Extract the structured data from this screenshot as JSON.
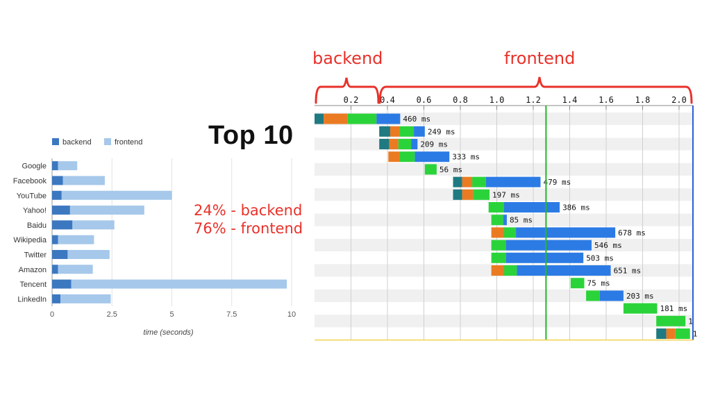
{
  "slide": {
    "title": "Top 10",
    "stat_backend": "24% - backend",
    "stat_frontend": "76% - frontend"
  },
  "brackets": {
    "backend_label": "backend",
    "frontend_label": "frontend"
  },
  "chart_data": [
    {
      "type": "bar",
      "orientation": "horizontal",
      "stacked": true,
      "categories": [
        "Google",
        "Facebook",
        "YouTube",
        "Yahoo!",
        "Baidu",
        "Wikipedia",
        "Twitter",
        "Amazon",
        "Tencent",
        "LinkedIn"
      ],
      "series": [
        {
          "name": "backend",
          "color": "#3c78c0",
          "values": [
            0.25,
            0.45,
            0.4,
            0.75,
            0.85,
            0.25,
            0.65,
            0.25,
            0.8,
            0.35
          ]
        },
        {
          "name": "frontend",
          "color": "#a6c8ea",
          "values": [
            0.8,
            1.75,
            4.6,
            3.1,
            1.75,
            1.5,
            1.75,
            1.45,
            9.0,
            2.1
          ]
        }
      ],
      "xlabel": "time (seconds)",
      "ylabel": "",
      "xlim": [
        0,
        10
      ],
      "xticks": [
        "0",
        "2.5",
        "5",
        "7.5",
        "10"
      ],
      "grid": true,
      "legend": "top-left"
    },
    {
      "type": "waterfall",
      "xlim": [
        0,
        2.1
      ],
      "xticks": [
        "0.2",
        "0.4",
        "0.6",
        "0.8",
        "1.0",
        "1.2",
        "1.4",
        "1.6",
        "1.8",
        "2.0"
      ],
      "marker_line": 1.27,
      "phase_colors": {
        "dns": "#1f7a82",
        "connect": "#ea7b22",
        "wait": "#2bd33a",
        "receive": "#2c7be5"
      },
      "rows": [
        {
          "label": "460 ms",
          "start": 0.0,
          "segments": [
            [
              "dns",
              0.05
            ],
            [
              "connect",
              0.13
            ],
            [
              "wait",
              0.16
            ],
            [
              "receive",
              0.13
            ]
          ]
        },
        {
          "label": "249 ms",
          "start": 0.355,
          "segments": [
            [
              "dns",
              0.06
            ],
            [
              "connect",
              0.05
            ],
            [
              "wait",
              0.08
            ],
            [
              "receive",
              0.06
            ]
          ]
        },
        {
          "label": "209 ms",
          "start": 0.355,
          "segments": [
            [
              "dns",
              0.055
            ],
            [
              "connect",
              0.05
            ],
            [
              "wait",
              0.07
            ],
            [
              "receive",
              0.035
            ]
          ]
        },
        {
          "label": "333 ms",
          "start": 0.405,
          "segments": [
            [
              "connect",
              0.06
            ],
            [
              "wait",
              0.085
            ],
            [
              "receive",
              0.19
            ]
          ]
        },
        {
          "label": "56 ms",
          "start": 0.605,
          "segments": [
            [
              "wait",
              0.065
            ]
          ]
        },
        {
          "label": "479 ms",
          "start": 0.76,
          "segments": [
            [
              "dns",
              0.05
            ],
            [
              "connect",
              0.055
            ],
            [
              "wait",
              0.075
            ],
            [
              "receive",
              0.3
            ]
          ]
        },
        {
          "label": "197 ms",
          "start": 0.76,
          "segments": [
            [
              "dns",
              0.05
            ],
            [
              "connect",
              0.06
            ],
            [
              "wait",
              0.09
            ]
          ]
        },
        {
          "label": "386 ms",
          "start": 0.955,
          "segments": [
            [
              "wait",
              0.085
            ],
            [
              "receive",
              0.305
            ]
          ]
        },
        {
          "label": "85 ms",
          "start": 0.97,
          "segments": [
            [
              "wait",
              0.065
            ],
            [
              "receive",
              0.02
            ]
          ]
        },
        {
          "label": "678 ms",
          "start": 0.97,
          "segments": [
            [
              "connect",
              0.07
            ],
            [
              "wait",
              0.065
            ],
            [
              "receive",
              0.545
            ]
          ]
        },
        {
          "label": "546 ms",
          "start": 0.97,
          "segments": [
            [
              "wait",
              0.08
            ],
            [
              "receive",
              0.47
            ]
          ]
        },
        {
          "label": "503 ms",
          "start": 0.97,
          "segments": [
            [
              "wait",
              0.08
            ],
            [
              "receive",
              0.425
            ]
          ]
        },
        {
          "label": "651 ms",
          "start": 0.97,
          "segments": [
            [
              "connect",
              0.07
            ],
            [
              "wait",
              0.07
            ],
            [
              "receive",
              0.515
            ]
          ]
        },
        {
          "label": "75 ms",
          "start": 1.405,
          "segments": [
            [
              "wait",
              0.075
            ]
          ]
        },
        {
          "label": "203 ms",
          "start": 1.49,
          "segments": [
            [
              "wait",
              0.075
            ],
            [
              "receive",
              0.13
            ]
          ]
        },
        {
          "label": "181 ms",
          "start": 1.695,
          "segments": [
            [
              "wait",
              0.185
            ]
          ]
        },
        {
          "label": "1",
          "start": 1.875,
          "segments": [
            [
              "wait",
              0.16
            ]
          ]
        },
        {
          "label": "1",
          "start": 1.875,
          "segments": [
            [
              "dns",
              0.055
            ],
            [
              "connect",
              0.05
            ],
            [
              "wait",
              0.08
            ]
          ]
        }
      ]
    }
  ]
}
